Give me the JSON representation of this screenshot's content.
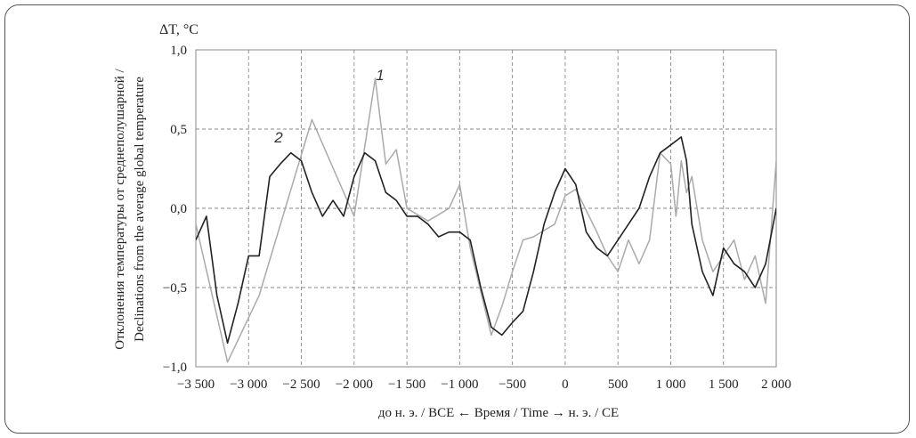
{
  "chart_data": {
    "type": "line",
    "unit_label": "ΔT, °C",
    "ylabel_lines": [
      "Отклонения температуры от среднеполушарной /",
      "Declinations from the average global temperature"
    ],
    "xlabel": "до н. э. / BCE ← Время / Time → н. э. / CE",
    "xlim": [
      -3500,
      2000
    ],
    "ylim": [
      -1.0,
      1.0
    ],
    "grid": true,
    "x_ticks": [
      -3500,
      -3000,
      -2500,
      -2000,
      -1500,
      -1000,
      -500,
      0,
      500,
      1000,
      1500,
      2000
    ],
    "x_tick_labels": [
      "−3 500",
      "−3 000",
      "−2 500",
      "−2 000",
      "−1 500",
      "−1 000",
      "−500",
      "0",
      "500",
      "1 000",
      "1 500",
      "2 000"
    ],
    "y_ticks": [
      1.0,
      0.5,
      0.0,
      -0.5,
      -1.0
    ],
    "y_tick_labels": [
      "1,0",
      "0,5",
      "0,0",
      "−0,5",
      "−1,0"
    ],
    "series": [
      {
        "name": "1",
        "color": "#aaaaaa",
        "x": [
          -3500,
          -3200,
          -2900,
          -2400,
          -2000,
          -1800,
          -1700,
          -1600,
          -1500,
          -1300,
          -1100,
          -1000,
          -900,
          -700,
          -600,
          -500,
          -400,
          -300,
          -100,
          0,
          100,
          300,
          400,
          500,
          600,
          700,
          800,
          900,
          1000,
          1050,
          1100,
          1150,
          1200,
          1300,
          1400,
          1500,
          1600,
          1700,
          1800,
          1900,
          2000
        ],
        "y": [
          -0.1,
          -0.97,
          -0.55,
          0.56,
          -0.05,
          0.82,
          0.28,
          0.37,
          0.0,
          -0.08,
          0.0,
          0.15,
          -0.25,
          -0.8,
          -0.62,
          -0.4,
          -0.2,
          -0.18,
          -0.1,
          0.08,
          0.12,
          -0.15,
          -0.3,
          -0.4,
          -0.2,
          -0.35,
          -0.2,
          0.35,
          0.28,
          -0.05,
          0.3,
          0.1,
          0.2,
          -0.2,
          -0.4,
          -0.3,
          -0.2,
          -0.45,
          -0.3,
          -0.6,
          0.3
        ]
      },
      {
        "name": "2",
        "color": "#222222",
        "x": [
          -3500,
          -3400,
          -3300,
          -3200,
          -3100,
          -3000,
          -2900,
          -2800,
          -2700,
          -2600,
          -2500,
          -2400,
          -2300,
          -2200,
          -2100,
          -2000,
          -1900,
          -1800,
          -1700,
          -1600,
          -1500,
          -1400,
          -1300,
          -1200,
          -1100,
          -1000,
          -900,
          -800,
          -700,
          -600,
          -500,
          -400,
          -300,
          -200,
          -100,
          0,
          100,
          200,
          300,
          400,
          500,
          600,
          700,
          800,
          900,
          1000,
          1100,
          1150,
          1200,
          1300,
          1400,
          1500,
          1600,
          1700,
          1800,
          1900,
          2000
        ],
        "y": [
          -0.2,
          -0.05,
          -0.55,
          -0.85,
          -0.6,
          -0.3,
          -0.3,
          0.2,
          0.28,
          0.35,
          0.3,
          0.1,
          -0.05,
          0.05,
          -0.05,
          0.2,
          0.35,
          0.3,
          0.1,
          0.05,
          -0.05,
          -0.05,
          -0.1,
          -0.18,
          -0.15,
          -0.15,
          -0.2,
          -0.5,
          -0.75,
          -0.8,
          -0.72,
          -0.65,
          -0.4,
          -0.1,
          0.1,
          0.25,
          0.15,
          -0.15,
          -0.25,
          -0.3,
          -0.2,
          -0.1,
          0.0,
          0.2,
          0.35,
          0.4,
          0.45,
          0.3,
          -0.1,
          -0.4,
          -0.55,
          -0.25,
          -0.35,
          -0.4,
          -0.5,
          -0.35,
          0.0
        ]
      }
    ]
  }
}
